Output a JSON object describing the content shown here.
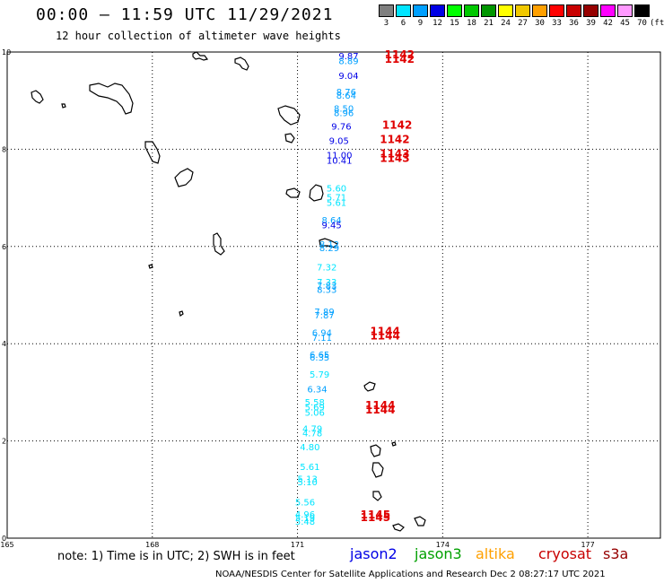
{
  "header": {
    "title": "00:00 – 11:59 UTC 11/29/2021",
    "subtitle": "12 hour collection of altimeter wave heights"
  },
  "scale": {
    "unit": "(ft)",
    "bins": [
      {
        "label": "3",
        "color": "#7f7f7f"
      },
      {
        "label": "6",
        "color": "#00e5ff"
      },
      {
        "label": "9",
        "color": "#00a0ff"
      },
      {
        "label": "12",
        "color": "#0000e6"
      },
      {
        "label": "15",
        "color": "#00ff00"
      },
      {
        "label": "18",
        "color": "#00c800"
      },
      {
        "label": "21",
        "color": "#009600"
      },
      {
        "label": "24",
        "color": "#ffff00"
      },
      {
        "label": "27",
        "color": "#f0c800"
      },
      {
        "label": "30",
        "color": "#ffa000"
      },
      {
        "label": "33",
        "color": "#ff0000"
      },
      {
        "label": "36",
        "color": "#c80000"
      },
      {
        "label": "39",
        "color": "#960000"
      },
      {
        "label": "42",
        "color": "#ff00ff"
      },
      {
        "label": "45",
        "color": "#ff99ff"
      },
      {
        "label": "70",
        "color": "#000000"
      }
    ]
  },
  "map": {
    "lon_ticks": [
      "165",
      "168",
      "171",
      "174",
      "177"
    ],
    "lat_ticks": [
      "0",
      "2",
      "4",
      "6",
      "8",
      "10"
    ]
  },
  "observations": [
    {
      "text": "9.87",
      "lat": 9.85,
      "lon": 171.85,
      "color": "#0000e6"
    },
    {
      "text": "8.89",
      "lat": 9.75,
      "lon": 171.85,
      "color": "#00a0ff"
    },
    {
      "text": "9.04",
      "lat": 9.45,
      "lon": 171.85,
      "color": "#0000e6"
    },
    {
      "text": "8.76",
      "lat": 9.11,
      "lon": 171.8,
      "color": "#00a0ff"
    },
    {
      "text": "8.64",
      "lat": 9.04,
      "lon": 171.8,
      "color": "#00a0ff"
    },
    {
      "text": "8.50",
      "lat": 8.77,
      "lon": 171.75,
      "color": "#00a0ff"
    },
    {
      "text": "8.96",
      "lat": 8.68,
      "lon": 171.75,
      "color": "#00a0ff"
    },
    {
      "text": "9.76",
      "lat": 8.4,
      "lon": 171.7,
      "color": "#0000e6"
    },
    {
      "text": "9.05",
      "lat": 8.11,
      "lon": 171.65,
      "color": "#0000e6"
    },
    {
      "text": "11.00",
      "lat": 7.81,
      "lon": 171.6,
      "color": "#0000e6"
    },
    {
      "text": "10.41",
      "lat": 7.7,
      "lon": 171.6,
      "color": "#0000e6"
    },
    {
      "text": "5.60",
      "lat": 7.13,
      "lon": 171.6,
      "color": "#00e5ff"
    },
    {
      "text": "5.71",
      "lat": 6.95,
      "lon": 171.6,
      "color": "#00e5ff"
    },
    {
      "text": "5.61",
      "lat": 6.84,
      "lon": 171.6,
      "color": "#00e5ff"
    },
    {
      "text": "8.64",
      "lat": 6.48,
      "lon": 171.5,
      "color": "#00a0ff"
    },
    {
      "text": "9.45",
      "lat": 6.37,
      "lon": 171.5,
      "color": "#0000e6"
    },
    {
      "text": "8.12",
      "lat": 5.98,
      "lon": 171.45,
      "color": "#00a0ff"
    },
    {
      "text": "8.29",
      "lat": 5.9,
      "lon": 171.45,
      "color": "#00a0ff"
    },
    {
      "text": "7.32",
      "lat": 5.51,
      "lon": 171.4,
      "color": "#00e5ff"
    },
    {
      "text": "7.33",
      "lat": 5.2,
      "lon": 171.4,
      "color": "#00e5ff"
    },
    {
      "text": "7.83",
      "lat": 5.13,
      "lon": 171.4,
      "color": "#00a0ff"
    },
    {
      "text": "8.33",
      "lat": 5.05,
      "lon": 171.4,
      "color": "#00a0ff"
    },
    {
      "text": "7.89",
      "lat": 4.59,
      "lon": 171.35,
      "color": "#00a0ff"
    },
    {
      "text": "7.87",
      "lat": 4.52,
      "lon": 171.35,
      "color": "#00a0ff"
    },
    {
      "text": "6.94",
      "lat": 4.16,
      "lon": 171.3,
      "color": "#00a0ff"
    },
    {
      "text": "7.11",
      "lat": 4.06,
      "lon": 171.3,
      "color": "#00a0ff"
    },
    {
      "text": "6.65",
      "lat": 3.71,
      "lon": 171.25,
      "color": "#00a0ff"
    },
    {
      "text": "6.35",
      "lat": 3.65,
      "lon": 171.25,
      "color": "#00a0ff"
    },
    {
      "text": "5.79",
      "lat": 3.3,
      "lon": 171.25,
      "color": "#00e5ff"
    },
    {
      "text": "6.34",
      "lat": 3.0,
      "lon": 171.2,
      "color": "#00a0ff"
    },
    {
      "text": "5.58",
      "lat": 2.73,
      "lon": 171.15,
      "color": "#00e5ff"
    },
    {
      "text": "5.69",
      "lat": 2.63,
      "lon": 171.15,
      "color": "#00e5ff"
    },
    {
      "text": "5.06",
      "lat": 2.52,
      "lon": 171.15,
      "color": "#00e5ff"
    },
    {
      "text": "4.79",
      "lat": 2.19,
      "lon": 171.1,
      "color": "#00e5ff"
    },
    {
      "text": "4.78",
      "lat": 2.09,
      "lon": 171.1,
      "color": "#00e5ff"
    },
    {
      "text": "4.80",
      "lat": 1.81,
      "lon": 171.05,
      "color": "#00e5ff"
    },
    {
      "text": "5.61",
      "lat": 1.4,
      "lon": 171.05,
      "color": "#00e5ff"
    },
    {
      "text": "5.13",
      "lat": 1.15,
      "lon": 171.0,
      "color": "#00e5ff"
    },
    {
      "text": "5.10",
      "lat": 1.09,
      "lon": 171.0,
      "color": "#00e5ff"
    },
    {
      "text": "5.56",
      "lat": 0.67,
      "lon": 170.95,
      "color": "#00e5ff"
    },
    {
      "text": "4.96",
      "lat": 0.42,
      "lon": 170.95,
      "color": "#00e5ff"
    },
    {
      "text": "5.19",
      "lat": 0.35,
      "lon": 170.95,
      "color": "#00e5ff"
    },
    {
      "text": "5.48",
      "lat": 0.28,
      "lon": 170.95,
      "color": "#00e5ff"
    }
  ],
  "orbit_labels": [
    {
      "text": "1142",
      "lat": 9.87,
      "lon": 172.8
    },
    {
      "text": "1142",
      "lat": 9.78,
      "lon": 172.8
    },
    {
      "text": "1142",
      "lat": 8.42,
      "lon": 172.75
    },
    {
      "text": "1142",
      "lat": 8.13,
      "lon": 172.7
    },
    {
      "text": "1143",
      "lat": 7.83,
      "lon": 172.7
    },
    {
      "text": "1143",
      "lat": 7.74,
      "lon": 172.7
    },
    {
      "text": "1144",
      "lat": 4.18,
      "lon": 172.5
    },
    {
      "text": "1144",
      "lat": 4.09,
      "lon": 172.5
    },
    {
      "text": "1144",
      "lat": 2.66,
      "lon": 172.4
    },
    {
      "text": "1144",
      "lat": 2.56,
      "lon": 172.4
    },
    {
      "text": "1145",
      "lat": 0.41,
      "lon": 172.3
    },
    {
      "text": "1145",
      "lat": 0.35,
      "lon": 172.3
    }
  ],
  "footer": {
    "note": "note: 1) Time is in UTC; 2) SWH is in feet",
    "legend": [
      {
        "label": "jason2",
        "color": "#0000e6"
      },
      {
        "label": "jason3",
        "color": "#00a000"
      },
      {
        "label": "altika",
        "color": "#ffa000"
      },
      {
        "label": "cryosat",
        "color": "#c80000"
      },
      {
        "label": "s3a",
        "color": "#960000"
      }
    ],
    "credit": "NOAA/NESDIS Center for Satellite Applications and Research   Dec  2 08:27:17 UTC 2021"
  }
}
